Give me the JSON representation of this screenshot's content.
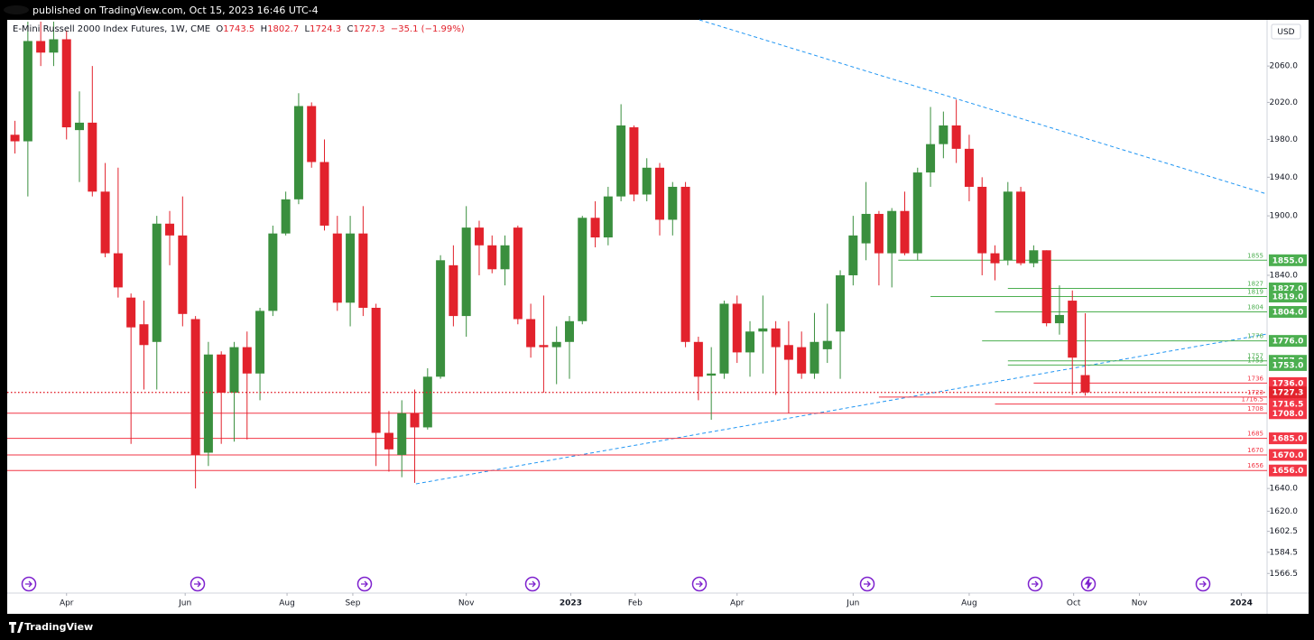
{
  "header": {
    "published": "published on TradingView.com, Oct 15, 2023 16:46 UTC-4"
  },
  "footer": {
    "brand": "TradingView"
  },
  "chart_data": {
    "type": "candlestick",
    "legend": {
      "name": "E-Mini Russell 2000 Index Futures, 1W, CME",
      "open_prefix": "O",
      "high_prefix": "H",
      "low_prefix": "L",
      "close_prefix": "C",
      "change": "−35.1",
      "change_pct": "(−1.99%)"
    },
    "currency": "USD",
    "log_scale": true,
    "grid": false,
    "up_color": "#3a8f3e",
    "down_color": "#e2222c",
    "xlim": [
      -0.6,
      97.1
    ],
    "xticks": [
      {
        "value": 4.0,
        "label": "Apr"
      },
      {
        "value": 13.2,
        "label": "Jun"
      },
      {
        "value": 21.1,
        "label": "Aug"
      },
      {
        "value": 26.2,
        "label": "Sep"
      },
      {
        "value": 35.0,
        "label": "Nov"
      },
      {
        "value": 43.1,
        "label": "2023"
      },
      {
        "value": 48.1,
        "label": "Feb"
      },
      {
        "value": 56.0,
        "label": "Apr"
      },
      {
        "value": 65.0,
        "label": "Jun"
      },
      {
        "value": 74.0,
        "label": "Aug"
      },
      {
        "value": 82.1,
        "label": "Oct"
      },
      {
        "value": 87.2,
        "label": "Nov"
      },
      {
        "value": 95.1,
        "label": "2024"
      }
    ],
    "ylim": [
      1550,
      2112
    ],
    "yticks": [
      {
        "value": 2060,
        "label": "2060.0"
      },
      {
        "value": 2020,
        "label": "2020.0"
      },
      {
        "value": 1980,
        "label": "1980.0"
      },
      {
        "value": 1940,
        "label": "1940.0"
      },
      {
        "value": 1900,
        "label": "1900.0"
      },
      {
        "value": 1840,
        "label": "1840.0"
      },
      {
        "value": 1640,
        "label": "1640.0"
      },
      {
        "value": 1620,
        "label": "1620.0"
      },
      1602.5,
      1584.5,
      1566.5
    ],
    "open": [
      1985,
      1978,
      2088,
      2075,
      2090,
      1990,
      1998,
      1925,
      1862,
      1818,
      1792,
      1775,
      1892,
      1880,
      1797,
      1672,
      1763,
      1727,
      1770,
      1745,
      1805,
      1882,
      1917,
      2016,
      1956,
      1882,
      1813,
      1882,
      1808,
      1690,
      1670,
      1708,
      1695,
      1742,
      1850,
      1800,
      1888,
      1870,
      1846,
      1888,
      1797,
      1772,
      1770,
      1775,
      1795,
      1898,
      1878,
      1920,
      1993,
      1922,
      1950,
      1896,
      1930,
      1775,
      1743,
      1745,
      1812,
      1765,
      1785,
      1788,
      1772,
      1770,
      1745,
      1768,
      1785,
      1840,
      1872,
      1902,
      1862,
      1905,
      1862,
      1945,
      1975,
      1995,
      1970,
      1930,
      1862,
      1855,
      1925,
      1852,
      1865,
      1793,
      1815,
      1743.5
    ],
    "high": [
      2000,
      2110,
      2110,
      2110,
      2100,
      2032,
      2060,
      1955,
      1950,
      1822,
      1815,
      1900,
      1905,
      1920,
      1800,
      1775,
      1766,
      1775,
      1785,
      1808,
      1890,
      1925,
      2030,
      2020,
      1980,
      1900,
      1900,
      1910,
      1812,
      1710,
      1720,
      1730,
      1750,
      1860,
      1870,
      1910,
      1895,
      1880,
      1880,
      1890,
      1812,
      1820,
      1790,
      1800,
      1900,
      1915,
      1930,
      2018,
      1995,
      1960,
      1955,
      1935,
      1935,
      1780,
      1770,
      1815,
      1820,
      1795,
      1820,
      1795,
      1795,
      1785,
      1803,
      1812,
      1845,
      1900,
      1935,
      1905,
      1908,
      1925,
      1950,
      2015,
      2010,
      2023,
      1985,
      1940,
      1870,
      1935,
      1930,
      1870,
      1865,
      1830,
      1825,
      1802.7
    ],
    "low": [
      1965,
      1920,
      2060,
      2060,
      1980,
      1935,
      1920,
      1858,
      1818,
      1680,
      1730,
      1730,
      1850,
      1790,
      1640,
      1660,
      1680,
      1682,
      1684,
      1720,
      1800,
      1880,
      1912,
      1950,
      1885,
      1805,
      1790,
      1800,
      1660,
      1655,
      1650,
      1645,
      1693,
      1740,
      1790,
      1780,
      1840,
      1842,
      1830,
      1792,
      1760,
      1727,
      1735,
      1740,
      1792,
      1868,
      1870,
      1915,
      1915,
      1915,
      1880,
      1880,
      1770,
      1720,
      1702,
      1740,
      1755,
      1742,
      1745,
      1725,
      1708,
      1740,
      1740,
      1755,
      1740,
      1830,
      1855,
      1830,
      1828,
      1860,
      1855,
      1930,
      1960,
      1955,
      1915,
      1840,
      1835,
      1850,
      1850,
      1848,
      1790,
      1782,
      1725,
      1724.3
    ],
    "close": [
      1978,
      2088,
      2075,
      2090,
      1993,
      1998,
      1925,
      1862,
      1828,
      1789,
      1772,
      1892,
      1880,
      1802,
      1670,
      1763,
      1727,
      1770,
      1745,
      1805,
      1882,
      1917,
      2016,
      1956,
      1890,
      1813,
      1882,
      1808,
      1690,
      1675,
      1708,
      1695,
      1742,
      1855,
      1800,
      1888,
      1870,
      1846,
      1870,
      1797,
      1770,
      1770,
      1775,
      1795,
      1898,
      1878,
      1920,
      1995,
      1922,
      1950,
      1896,
      1930,
      1775,
      1742,
      1745,
      1812,
      1765,
      1785,
      1788,
      1770,
      1758,
      1745,
      1775,
      1776,
      1840,
      1880,
      1902,
      1862,
      1905,
      1862,
      1945,
      1975,
      1995,
      1970,
      1930,
      1862,
      1852,
      1925,
      1852,
      1865,
      1793,
      1801,
      1760,
      1727.3
    ],
    "levels": [
      {
        "value": 1855,
        "label": "1855.0",
        "color": "#4caf50",
        "x_start": 68.5
      },
      {
        "value": 1827,
        "label": "1827.0",
        "color": "#4caf50",
        "x_start": 77
      },
      {
        "value": 1819,
        "label": "1819.0",
        "color": "#4caf50",
        "x_start": 71
      },
      {
        "value": 1804,
        "label": "1804.0",
        "color": "#4caf50",
        "x_start": 76
      },
      {
        "value": 1776,
        "label": "1776.0",
        "color": "#4caf50",
        "x_start": 75
      },
      {
        "value": 1757,
        "label": "1757.0",
        "color": "#4caf50",
        "x_start": 77
      },
      {
        "value": 1753,
        "label": "1753.0",
        "color": "#4caf50",
        "x_start": 77
      },
      {
        "value": 1736,
        "label": "1736.0",
        "color": "#f23645",
        "x_start": 79
      },
      {
        "value": 1723,
        "label": "1723.0",
        "color": "#f23645",
        "x_start": 67
      },
      {
        "value": 1716.5,
        "label": "1716.5",
        "color": "#f23645",
        "x_start": 76
      },
      {
        "value": 1708,
        "label": "1708.0",
        "color": "#f23645",
        "x_start": -0.6
      },
      {
        "value": 1685,
        "label": "1685.0",
        "color": "#f23645",
        "x_start": -0.6
      },
      {
        "value": 1670,
        "label": "1670.0",
        "color": "#f23645",
        "x_start": -0.6
      },
      {
        "value": 1656,
        "label": "1656.0",
        "color": "#f23645",
        "x_start": -0.6
      }
    ]
  }
}
